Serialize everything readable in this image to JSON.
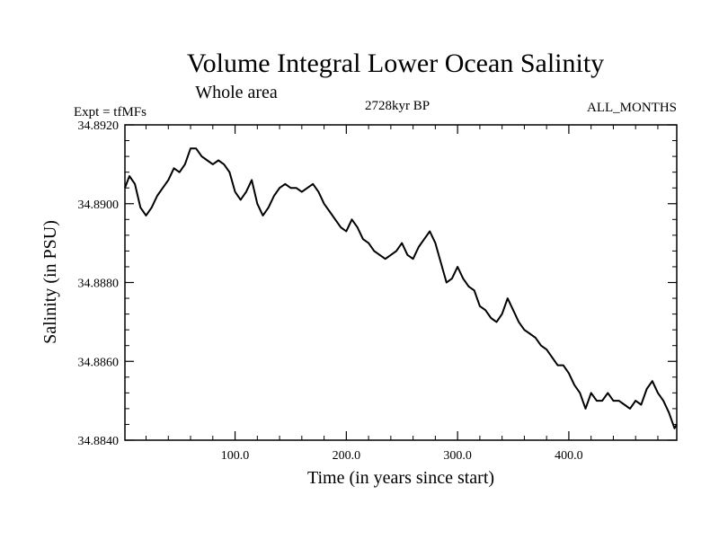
{
  "chart_data": {
    "type": "line",
    "title": "Volume Integral Lower Ocean Salinity",
    "subtitle": "Whole area",
    "experiment_label": "Expt = tfMFs",
    "period_label": "2728kyr BP",
    "months_label": "ALL_MONTHS",
    "xlabel": "Time (in years since start)",
    "ylabel": "Salinity (in PSU)",
    "xlim": [
      1,
      497
    ],
    "ylim": [
      34.884,
      34.892
    ],
    "x_ticks": [
      100,
      200,
      300,
      400
    ],
    "x_tick_labels": [
      "100.0",
      "200.0",
      "300.0",
      "400.0"
    ],
    "y_ticks": [
      34.884,
      34.886,
      34.888,
      34.89,
      34.892
    ],
    "y_tick_labels": [
      "34.8840",
      "34.8860",
      "34.8880",
      "34.8900",
      "34.8920"
    ],
    "series": [
      {
        "name": "Salinity",
        "x": [
          1,
          5,
          10,
          15,
          20,
          25,
          30,
          35,
          40,
          45,
          50,
          55,
          60,
          65,
          70,
          75,
          80,
          85,
          90,
          95,
          100,
          105,
          110,
          115,
          120,
          125,
          130,
          135,
          140,
          145,
          150,
          155,
          160,
          165,
          170,
          175,
          180,
          185,
          190,
          195,
          200,
          205,
          210,
          215,
          220,
          225,
          230,
          235,
          240,
          245,
          250,
          255,
          260,
          265,
          270,
          275,
          280,
          285,
          290,
          295,
          300,
          305,
          310,
          315,
          320,
          325,
          330,
          335,
          340,
          345,
          350,
          355,
          360,
          365,
          370,
          375,
          380,
          385,
          390,
          395,
          400,
          405,
          410,
          415,
          420,
          425,
          430,
          435,
          440,
          445,
          450,
          455,
          460,
          465,
          470,
          475,
          480,
          485,
          490,
          495,
          497
        ],
        "values": [
          34.8904,
          34.8907,
          34.8905,
          34.8899,
          34.8897,
          34.8899,
          34.8902,
          34.8904,
          34.8906,
          34.8909,
          34.8908,
          34.891,
          34.8914,
          34.8914,
          34.8912,
          34.8911,
          34.891,
          34.8911,
          34.891,
          34.8908,
          34.8903,
          34.8901,
          34.8903,
          34.8906,
          34.89,
          34.8897,
          34.8899,
          34.8902,
          34.8904,
          34.8905,
          34.8904,
          34.8904,
          34.8903,
          34.8904,
          34.8905,
          34.8903,
          34.89,
          34.8898,
          34.8896,
          34.8894,
          34.8893,
          34.8896,
          34.8894,
          34.8891,
          34.889,
          34.8888,
          34.8887,
          34.8886,
          34.8887,
          34.8888,
          34.889,
          34.8887,
          34.8886,
          34.8889,
          34.8891,
          34.8893,
          34.889,
          34.8885,
          34.888,
          34.8881,
          34.8884,
          34.8881,
          34.8879,
          34.8878,
          34.8874,
          34.8873,
          34.8871,
          34.887,
          34.8872,
          34.8876,
          34.8873,
          34.887,
          34.8868,
          34.8867,
          34.8866,
          34.8864,
          34.8863,
          34.8861,
          34.8859,
          34.8859,
          34.8857,
          34.8854,
          34.8852,
          34.8848,
          34.8852,
          34.885,
          34.885,
          34.8852,
          34.885,
          34.885,
          34.8849,
          34.8848,
          34.885,
          34.8849,
          34.8853,
          34.8855,
          34.8852,
          34.885,
          34.8847,
          34.8843,
          34.8844
        ]
      }
    ]
  }
}
